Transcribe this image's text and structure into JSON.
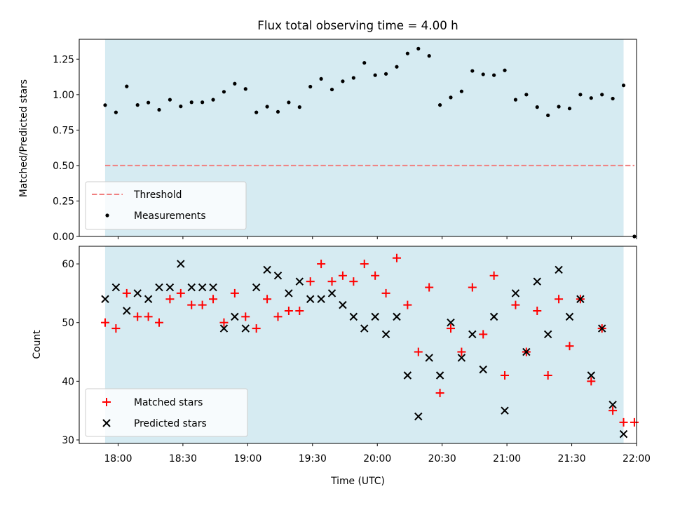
{
  "chart_data": {
    "title": "Flux total observing time = 4.00 h",
    "xlabel": "Time (UTC)",
    "x_ticks": [
      "18:00",
      "18:30",
      "19:00",
      "19:30",
      "20:00",
      "20:30",
      "21:00",
      "21:30",
      "22:00"
    ],
    "x_tick_minutes": [
      1080,
      1110,
      1140,
      1170,
      1200,
      1230,
      1260,
      1290,
      1320
    ],
    "xlim_minutes": [
      1062,
      1320
    ],
    "shaded_interval_minutes": [
      1074,
      1314
    ],
    "shade_color": "#add8e6",
    "panels": [
      {
        "type": "scatter",
        "ylabel": "Matched/Predicted stars",
        "ylim": [
          0,
          1.39
        ],
        "y_ticks": [
          0.0,
          0.25,
          0.5,
          0.75,
          1.0,
          1.25
        ],
        "y_tick_labels": [
          "0.00",
          "0.25",
          "0.50",
          "0.75",
          "1.00",
          "1.25"
        ],
        "threshold": {
          "name": "Threshold",
          "value": 0.5,
          "color": "#f08080",
          "x_range_minutes": [
            1074,
            1319
          ]
        },
        "series": [
          {
            "name": "Measurements",
            "marker": "dot",
            "color": "#000000",
            "points": [
              [
                1074,
                0.926
              ],
              [
                1079,
                0.875
              ],
              [
                1084,
                1.058
              ],
              [
                1089,
                0.927
              ],
              [
                1094,
                0.944
              ],
              [
                1099,
                0.893
              ],
              [
                1104,
                0.964
              ],
              [
                1109,
                0.917
              ],
              [
                1114,
                0.946
              ],
              [
                1119,
                0.946
              ],
              [
                1124,
                0.964
              ],
              [
                1129,
                1.02
              ],
              [
                1134,
                1.077
              ],
              [
                1139,
                1.04
              ],
              [
                1144,
                0.875
              ],
              [
                1149,
                0.915
              ],
              [
                1154,
                0.879
              ],
              [
                1159,
                0.945
              ],
              [
                1164,
                0.912
              ],
              [
                1169,
                1.056
              ],
              [
                1174,
                1.111
              ],
              [
                1179,
                1.036
              ],
              [
                1184,
                1.094
              ],
              [
                1189,
                1.118
              ],
              [
                1194,
                1.224
              ],
              [
                1199,
                1.137
              ],
              [
                1204,
                1.146
              ],
              [
                1209,
                1.196
              ],
              [
                1214,
                1.29
              ],
              [
                1219,
                1.324
              ],
              [
                1224,
                1.273
              ],
              [
                1229,
                0.927
              ],
              [
                1234,
                0.98
              ],
              [
                1239,
                1.023
              ],
              [
                1244,
                1.167
              ],
              [
                1249,
                1.143
              ],
              [
                1254,
                1.137
              ],
              [
                1259,
                1.171
              ],
              [
                1264,
                0.964
              ],
              [
                1269,
                1.0
              ],
              [
                1274,
                0.912
              ],
              [
                1279,
                0.854
              ],
              [
                1284,
                0.915
              ],
              [
                1289,
                0.902
              ],
              [
                1294,
                1.0
              ],
              [
                1299,
                0.976
              ],
              [
                1304,
                1.0
              ],
              [
                1309,
                0.972
              ],
              [
                1314,
                1.065
              ],
              [
                1319,
                0.0
              ]
            ]
          }
        ],
        "legend": {
          "position": "lower-left",
          "entries": [
            "Threshold",
            "Measurements"
          ]
        }
      },
      {
        "type": "scatter",
        "ylabel": "Count",
        "ylim": [
          29.4,
          63.0
        ],
        "y_ticks": [
          30,
          40,
          50,
          60
        ],
        "y_tick_labels": [
          "30",
          "40",
          "50",
          "60"
        ],
        "series": [
          {
            "name": "Matched stars",
            "marker": "plus",
            "color": "#ff0000",
            "points": [
              [
                1074,
                50
              ],
              [
                1079,
                49
              ],
              [
                1084,
                55
              ],
              [
                1089,
                51
              ],
              [
                1094,
                51
              ],
              [
                1099,
                50
              ],
              [
                1104,
                54
              ],
              [
                1109,
                55
              ],
              [
                1114,
                53
              ],
              [
                1119,
                53
              ],
              [
                1124,
                54
              ],
              [
                1129,
                50
              ],
              [
                1134,
                55
              ],
              [
                1139,
                51
              ],
              [
                1144,
                49
              ],
              [
                1149,
                54
              ],
              [
                1154,
                51
              ],
              [
                1159,
                52
              ],
              [
                1164,
                52
              ],
              [
                1169,
                57
              ],
              [
                1174,
                60
              ],
              [
                1179,
                57
              ],
              [
                1184,
                58
              ],
              [
                1189,
                57
              ],
              [
                1194,
                60
              ],
              [
                1199,
                58
              ],
              [
                1204,
                55
              ],
              [
                1209,
                61
              ],
              [
                1214,
                53
              ],
              [
                1219,
                45
              ],
              [
                1224,
                56
              ],
              [
                1229,
                38
              ],
              [
                1234,
                49
              ],
              [
                1239,
                45
              ],
              [
                1244,
                56
              ],
              [
                1249,
                48
              ],
              [
                1254,
                58
              ],
              [
                1259,
                41
              ],
              [
                1264,
                53
              ],
              [
                1269,
                45
              ],
              [
                1274,
                52
              ],
              [
                1279,
                41
              ],
              [
                1284,
                54
              ],
              [
                1289,
                46
              ],
              [
                1294,
                54
              ],
              [
                1299,
                40
              ],
              [
                1304,
                49
              ],
              [
                1309,
                35
              ],
              [
                1314,
                33
              ],
              [
                1319,
                33
              ]
            ]
          },
          {
            "name": "Predicted stars",
            "marker": "x",
            "color": "#000000",
            "points": [
              [
                1074,
                54
              ],
              [
                1079,
                56
              ],
              [
                1084,
                52
              ],
              [
                1089,
                55
              ],
              [
                1094,
                54
              ],
              [
                1099,
                56
              ],
              [
                1104,
                56
              ],
              [
                1109,
                60
              ],
              [
                1114,
                56
              ],
              [
                1119,
                56
              ],
              [
                1124,
                56
              ],
              [
                1129,
                49
              ],
              [
                1134,
                51
              ],
              [
                1139,
                49
              ],
              [
                1144,
                56
              ],
              [
                1149,
                59
              ],
              [
                1154,
                58
              ],
              [
                1159,
                55
              ],
              [
                1164,
                57
              ],
              [
                1169,
                54
              ],
              [
                1174,
                54
              ],
              [
                1179,
                55
              ],
              [
                1184,
                53
              ],
              [
                1189,
                51
              ],
              [
                1194,
                49
              ],
              [
                1199,
                51
              ],
              [
                1204,
                48
              ],
              [
                1209,
                51
              ],
              [
                1214,
                41
              ],
              [
                1219,
                34
              ],
              [
                1224,
                44
              ],
              [
                1229,
                41
              ],
              [
                1234,
                50
              ],
              [
                1239,
                44
              ],
              [
                1244,
                48
              ],
              [
                1249,
                42
              ],
              [
                1254,
                51
              ],
              [
                1259,
                35
              ],
              [
                1264,
                55
              ],
              [
                1269,
                45
              ],
              [
                1274,
                57
              ],
              [
                1279,
                48
              ],
              [
                1284,
                59
              ],
              [
                1289,
                51
              ],
              [
                1294,
                54
              ],
              [
                1299,
                41
              ],
              [
                1304,
                49
              ],
              [
                1309,
                36
              ],
              [
                1314,
                31
              ]
            ]
          }
        ],
        "legend": {
          "position": "lower-left",
          "entries": [
            "Matched stars",
            "Predicted stars"
          ]
        }
      }
    ]
  }
}
